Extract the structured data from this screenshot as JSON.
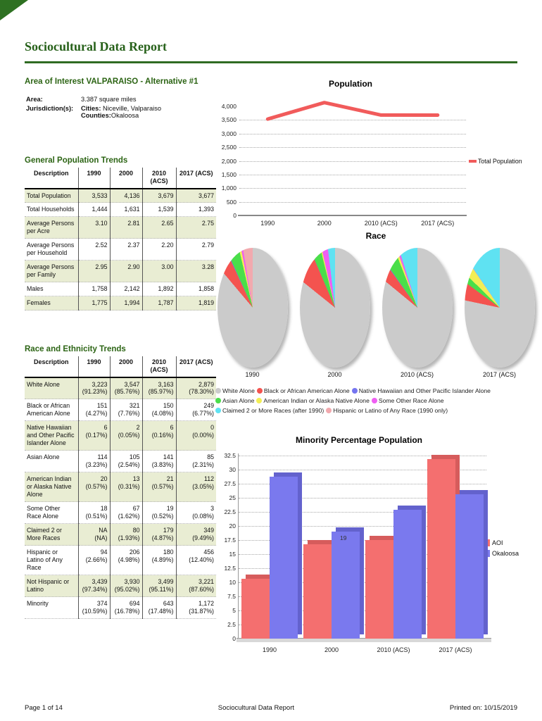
{
  "page": {
    "title": "Sociocultural Data Report",
    "footer": {
      "left": "Page 1 of 14",
      "center": "Sociocultural Data Report",
      "right": "Printed on: 10/15/2019"
    }
  },
  "area_info": {
    "heading": "Area of Interest VALPARAISO - Alternative #1",
    "area_label": "Area:",
    "area_value": "3.387 square miles",
    "jurisdiction_label": "Jurisdiction(s):",
    "cities_label": "Cities:",
    "cities_value": "Niceville, Valparaiso",
    "counties_label": "Counties:",
    "counties_value": "Okaloosa"
  },
  "population_table": {
    "heading": "General Population Trends",
    "columns": [
      "Description",
      "1990",
      "2000",
      "2010 (ACS)",
      "2017 (ACS)"
    ],
    "rows": [
      {
        "label": "Total Population",
        "values": [
          "3,533",
          "4,136",
          "3,679",
          "3,677"
        ]
      },
      {
        "label": "Total Households",
        "values": [
          "1,444",
          "1,631",
          "1,539",
          "1,393"
        ]
      },
      {
        "label": "Average Persons per Acre",
        "values": [
          "3.10",
          "2.81",
          "2.65",
          "2.75"
        ]
      },
      {
        "label": "Average Persons per Household",
        "values": [
          "2.52",
          "2.37",
          "2.20",
          "2.79"
        ]
      },
      {
        "label": "Average Persons per Family",
        "values": [
          "2.95",
          "2.90",
          "3.00",
          "3.28"
        ]
      },
      {
        "label": "Males",
        "values": [
          "1,758",
          "2,142",
          "1,892",
          "1,858"
        ]
      },
      {
        "label": "Females",
        "values": [
          "1,775",
          "1,994",
          "1,787",
          "1,819"
        ]
      }
    ]
  },
  "race_table": {
    "heading": "Race and Ethnicity Trends",
    "columns": [
      "Description",
      "1990",
      "2000",
      "2010 (ACS)",
      "2017 (ACS)"
    ],
    "rows": [
      {
        "label": "White Alone",
        "values": [
          "3,223",
          "3,547",
          "3,163",
          "2,879"
        ],
        "pcts": [
          "(91.23%)",
          "(85.76%)",
          "(85.97%)",
          "(78.30%)"
        ]
      },
      {
        "label": "Black or African American Alone",
        "values": [
          "151",
          "321",
          "150",
          "249"
        ],
        "pcts": [
          "(4.27%)",
          "(7.76%)",
          "(4.08%)",
          "(6.77%)"
        ]
      },
      {
        "label": "Native Hawaiian and Other Pacific Islander Alone",
        "values": [
          "6",
          "2",
          "6",
          "0"
        ],
        "pcts": [
          "(0.17%)",
          "(0.05%)",
          "(0.16%)",
          "(0.00%)"
        ]
      },
      {
        "label": "Asian Alone",
        "values": [
          "114",
          "105",
          "141",
          "85"
        ],
        "pcts": [
          "(3.23%)",
          "(2.54%)",
          "(3.83%)",
          "(2.31%)"
        ]
      },
      {
        "label": "American Indian or Alaska Native Alone",
        "values": [
          "20",
          "13",
          "21",
          "112"
        ],
        "pcts": [
          "(0.57%)",
          "(0.31%)",
          "(0.57%)",
          "(3.05%)"
        ]
      },
      {
        "label": "Some Other Race Alone",
        "values": [
          "18",
          "67",
          "19",
          "3"
        ],
        "pcts": [
          "(0.51%)",
          "(1.62%)",
          "(0.52%)",
          "(0.08%)"
        ]
      },
      {
        "label": "Claimed 2 or More Races",
        "values": [
          "NA",
          "80",
          "179",
          "349"
        ],
        "pcts": [
          "(NA)",
          "(1.93%)",
          "(4.87%)",
          "(9.49%)"
        ]
      },
      {
        "label": "Hispanic or Latino of Any Race",
        "values": [
          "94",
          "206",
          "180",
          "456"
        ],
        "pcts": [
          "(2.66%)",
          "(4.98%)",
          "(4.89%)",
          "(12.40%)"
        ]
      },
      {
        "label": "Not Hispanic or Latino",
        "values": [
          "3,439",
          "3,930",
          "3,499",
          "3,221"
        ],
        "pcts": [
          "(97.34%)",
          "(95.02%)",
          "(95.11%)",
          "(87.60%)"
        ]
      },
      {
        "label": "Minority",
        "values": [
          "374",
          "694",
          "643",
          "1,172"
        ],
        "pcts": [
          "(10.59%)",
          "(16.78%)",
          "(17.48%)",
          "(31.87%)"
        ]
      }
    ]
  },
  "chart_data": [
    {
      "type": "line",
      "title": "Population",
      "categories": [
        "1990",
        "2000",
        "2010 (ACS)",
        "2017 (ACS)"
      ],
      "series": [
        {
          "name": "Total Population",
          "color": "#f15b5b",
          "values": [
            3533,
            4136,
            3679,
            3677
          ]
        }
      ],
      "yticks": [
        0,
        500,
        1000,
        1500,
        2000,
        2500,
        3000,
        3500,
        4000
      ],
      "ytick_labels": [
        "0",
        "500",
        "1,000",
        "1,500",
        "2,000",
        "2,500",
        "3,000",
        "3,500",
        "4,000"
      ],
      "ylim": [
        0,
        4400
      ],
      "grid": "dotted-horizontal",
      "legend_position": "right"
    },
    {
      "type": "pie",
      "title": "Race",
      "colors": {
        "white": "#cbcbcb",
        "black": "#f4534f",
        "native_hawaiian": "#7575f0",
        "asian": "#4ade4a",
        "american_indian": "#f2ee55",
        "some_other": "#ef5ff2",
        "claimed_2plus": "#5fe2f2",
        "hispanic": "#f2a9ae"
      },
      "legend_rows": [
        [
          {
            "key": "white",
            "label": "White Alone"
          },
          {
            "key": "black",
            "label": "Black or African American Alone"
          },
          {
            "key": "native_hawaiian",
            "label": "Native Hawaiian and Other Pacific Islander Alone"
          }
        ],
        [
          {
            "key": "asian",
            "label": "Asian Alone"
          },
          {
            "key": "american_indian",
            "label": "American Indian or Alaska Native Alone"
          },
          {
            "key": "some_other",
            "label": "Some Other Race Alone"
          }
        ],
        [
          {
            "key": "claimed_2plus",
            "label": "Claimed 2 or More Races (after 1990)"
          },
          {
            "key": "hispanic",
            "label": "Hispanic or Latino of Any Race (1990 only)"
          }
        ]
      ],
      "pies": [
        {
          "label": "1990",
          "slices": [
            [
              "white",
              91.23
            ],
            [
              "black",
              4.27
            ],
            [
              "native_hawaiian",
              0.17
            ],
            [
              "asian",
              3.23
            ],
            [
              "american_indian",
              0.57
            ],
            [
              "some_other",
              0.51
            ],
            [
              "hispanic",
              2.66
            ]
          ]
        },
        {
          "label": "2000",
          "slices": [
            [
              "white",
              85.76
            ],
            [
              "black",
              7.76
            ],
            [
              "native_hawaiian",
              0.05
            ],
            [
              "asian",
              2.54
            ],
            [
              "american_indian",
              0.31
            ],
            [
              "some_other",
              1.62
            ],
            [
              "claimed_2plus",
              1.93
            ]
          ]
        },
        {
          "label": "2010 (ACS)",
          "slices": [
            [
              "white",
              85.97
            ],
            [
              "black",
              4.08
            ],
            [
              "native_hawaiian",
              0.16
            ],
            [
              "asian",
              3.83
            ],
            [
              "american_indian",
              0.57
            ],
            [
              "some_other",
              0.52
            ],
            [
              "claimed_2plus",
              4.87
            ]
          ]
        },
        {
          "label": "2017 (ACS)",
          "slices": [
            [
              "white",
              78.3
            ],
            [
              "black",
              6.77
            ],
            [
              "native_hawaiian",
              0.0
            ],
            [
              "asian",
              2.31
            ],
            [
              "american_indian",
              3.05
            ],
            [
              "some_other",
              0.08
            ],
            [
              "claimed_2plus",
              9.49
            ]
          ]
        }
      ]
    },
    {
      "type": "bar",
      "title": "Minority Percentage Population",
      "categories": [
        "1990",
        "2000",
        "2010 (ACS)",
        "2017 (ACS)"
      ],
      "series": [
        {
          "name": "AOI",
          "color": "#f46f6f",
          "shadow": "#d65c5c",
          "values": [
            10.59,
            16.78,
            17.48,
            31.87
          ]
        },
        {
          "name": "Okaloosa",
          "color": "#7a79ee",
          "shadow": "#6362cd",
          "values": [
            28.7,
            19.0,
            22.9,
            25.6
          ],
          "value_labels": [
            null,
            "19",
            null,
            null
          ]
        }
      ],
      "yticks": [
        0,
        2.5,
        5,
        7.5,
        10,
        12.5,
        15,
        17.5,
        20,
        22.5,
        25,
        27.5,
        30,
        32.5
      ],
      "ylim": [
        0,
        33.3
      ],
      "grid": "dotted-horizontal",
      "legend_position": "right"
    }
  ]
}
